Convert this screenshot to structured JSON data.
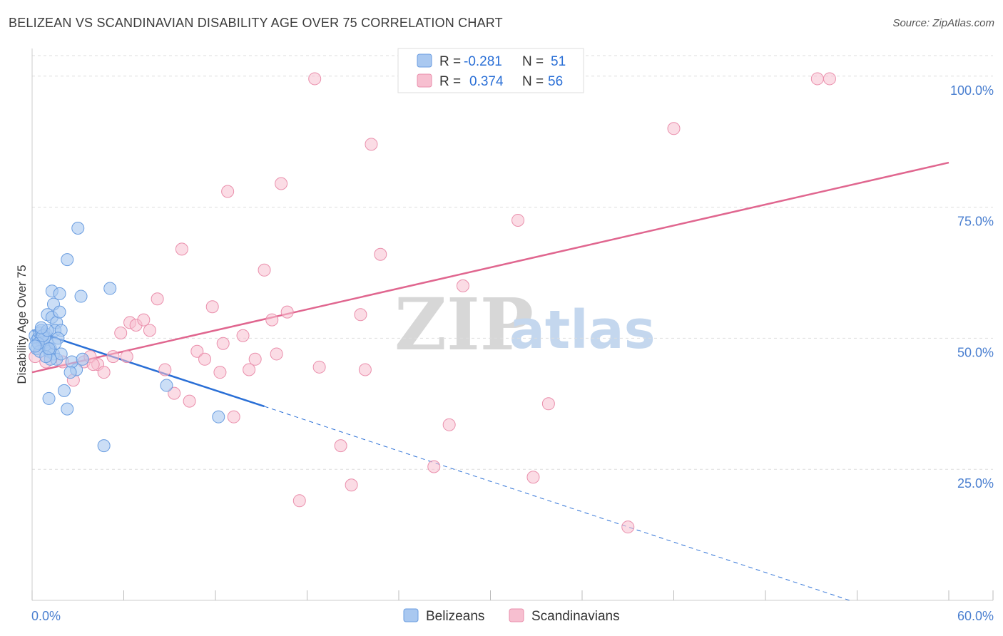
{
  "header": {
    "title": "BELIZEAN VS SCANDINAVIAN DISABILITY AGE OVER 75 CORRELATION CHART",
    "source": "Source: ZipAtlas.com"
  },
  "watermark": {
    "zip": "ZIP",
    "atlas": "atlas"
  },
  "legend": {
    "r_label": "R =",
    "n_label": "N =",
    "belizean": {
      "r": "-0.281",
      "n": "51"
    },
    "scandinavian": {
      "r": "0.374",
      "n": "56"
    }
  },
  "colors": {
    "belizean_fill": "#a9c8f0",
    "belizean_stroke": "#6a9de0",
    "belizean_line": "#2a6fd6",
    "scandinavian_fill": "#f7bfd0",
    "scandinavian_stroke": "#ea8fac",
    "scandinavian_line": "#e0668f",
    "grid": "#dddddd",
    "tick_text": "#4a7fd0"
  },
  "chart_data": {
    "type": "scatter",
    "title": "BELIZEAN VS SCANDINAVIAN DISABILITY AGE OVER 75 CORRELATION CHART",
    "xlabel": "",
    "ylabel": "Disability Age Over 75",
    "xlim": [
      0,
      60
    ],
    "ylim": [
      0,
      105
    ],
    "x_tick_labels": [
      "0.0%",
      "60.0%"
    ],
    "y_ticks": [
      25,
      50,
      75,
      100
    ],
    "y_tick_labels": [
      "25.0%",
      "50.0%",
      "75.0%",
      "100.0%"
    ],
    "grid": true,
    "legend_position": "top-center",
    "series": [
      {
        "name": "Belizeans",
        "r": -0.281,
        "n": 51,
        "trend": {
          "x0": 0,
          "y0": 51.5,
          "x1": 15.2,
          "y1": 37.0,
          "dash_to_x": 53.5,
          "dash_to_y": 0
        },
        "points": [
          [
            0.2,
            50.5
          ],
          [
            0.3,
            49.5
          ],
          [
            0.4,
            50.0
          ],
          [
            0.5,
            51.0
          ],
          [
            0.6,
            50.3
          ],
          [
            0.7,
            49.0
          ],
          [
            0.8,
            48.5
          ],
          [
            0.9,
            50.8
          ],
          [
            1.0,
            49.3
          ],
          [
            1.1,
            47.5
          ],
          [
            0.3,
            48.0
          ],
          [
            0.5,
            47.5
          ],
          [
            0.6,
            51.5
          ],
          [
            0.8,
            50.0
          ],
          [
            1.2,
            48.0
          ],
          [
            1.0,
            54.5
          ],
          [
            1.3,
            54.0
          ],
          [
            1.4,
            56.5
          ],
          [
            1.6,
            53.0
          ],
          [
            1.5,
            51.5
          ],
          [
            1.8,
            55.0
          ],
          [
            1.9,
            51.5
          ],
          [
            1.7,
            50.0
          ],
          [
            1.4,
            47.0
          ],
          [
            1.6,
            46.0
          ],
          [
            1.2,
            46.0
          ],
          [
            1.9,
            47.0
          ],
          [
            1.3,
            59.0
          ],
          [
            1.8,
            58.5
          ],
          [
            2.3,
            65.0
          ],
          [
            3.0,
            71.0
          ],
          [
            3.2,
            58.0
          ],
          [
            5.1,
            59.5
          ],
          [
            2.9,
            44.0
          ],
          [
            2.6,
            45.5
          ],
          [
            3.3,
            46.0
          ],
          [
            2.5,
            43.5
          ],
          [
            2.1,
            40.0
          ],
          [
            1.1,
            38.5
          ],
          [
            2.3,
            36.5
          ],
          [
            4.7,
            29.5
          ],
          [
            8.8,
            41.0
          ],
          [
            12.2,
            35.0
          ],
          [
            0.9,
            46.5
          ],
          [
            1.5,
            49.0
          ],
          [
            0.4,
            49.0
          ],
          [
            0.7,
            50.5
          ],
          [
            1.0,
            51.5
          ],
          [
            0.2,
            48.5
          ],
          [
            1.1,
            48.0
          ],
          [
            0.6,
            52.0
          ]
        ]
      },
      {
        "name": "Scandinavians",
        "r": 0.374,
        "n": 56,
        "trend": {
          "x0": 0,
          "y0": 43.5,
          "x1": 60,
          "y1": 83.5
        },
        "points": [
          [
            0.2,
            46.5
          ],
          [
            0.9,
            45.5
          ],
          [
            2.0,
            45.5
          ],
          [
            2.7,
            42.0
          ],
          [
            3.4,
            45.5
          ],
          [
            3.8,
            46.5
          ],
          [
            4.3,
            45.0
          ],
          [
            4.7,
            43.5
          ],
          [
            5.3,
            46.5
          ],
          [
            5.8,
            51.0
          ],
          [
            6.4,
            53.0
          ],
          [
            6.8,
            52.5
          ],
          [
            7.3,
            53.5
          ],
          [
            7.7,
            51.5
          ],
          [
            8.2,
            57.5
          ],
          [
            8.7,
            44.0
          ],
          [
            9.3,
            39.5
          ],
          [
            9.8,
            67.0
          ],
          [
            10.3,
            38.0
          ],
          [
            10.8,
            47.5
          ],
          [
            11.3,
            46.0
          ],
          [
            11.8,
            56.0
          ],
          [
            12.3,
            43.5
          ],
          [
            12.8,
            78.0
          ],
          [
            13.2,
            35.0
          ],
          [
            13.8,
            50.5
          ],
          [
            14.2,
            44.0
          ],
          [
            14.6,
            46.0
          ],
          [
            15.2,
            63.0
          ],
          [
            15.7,
            53.5
          ],
          [
            16.3,
            79.5
          ],
          [
            16.7,
            55.0
          ],
          [
            17.5,
            19.0
          ],
          [
            18.5,
            99.5
          ],
          [
            18.8,
            44.5
          ],
          [
            20.2,
            29.5
          ],
          [
            20.9,
            22.0
          ],
          [
            21.5,
            54.5
          ],
          [
            21.8,
            44.0
          ],
          [
            22.2,
            87.0
          ],
          [
            22.8,
            66.0
          ],
          [
            25.6,
            99.5
          ],
          [
            26.3,
            25.5
          ],
          [
            27.3,
            33.5
          ],
          [
            28.2,
            60.0
          ],
          [
            31.8,
            72.5
          ],
          [
            32.8,
            23.5
          ],
          [
            33.8,
            37.5
          ],
          [
            39.0,
            14.0
          ],
          [
            42.0,
            90.0
          ],
          [
            51.4,
            99.5
          ],
          [
            52.2,
            99.5
          ],
          [
            4.0,
            45.0
          ],
          [
            6.2,
            46.5
          ],
          [
            16.0,
            47.0
          ],
          [
            12.5,
            49.0
          ]
        ]
      }
    ]
  },
  "bottom_legend": {
    "belizean_label": "Belizeans",
    "scandinavian_label": "Scandinavians"
  }
}
